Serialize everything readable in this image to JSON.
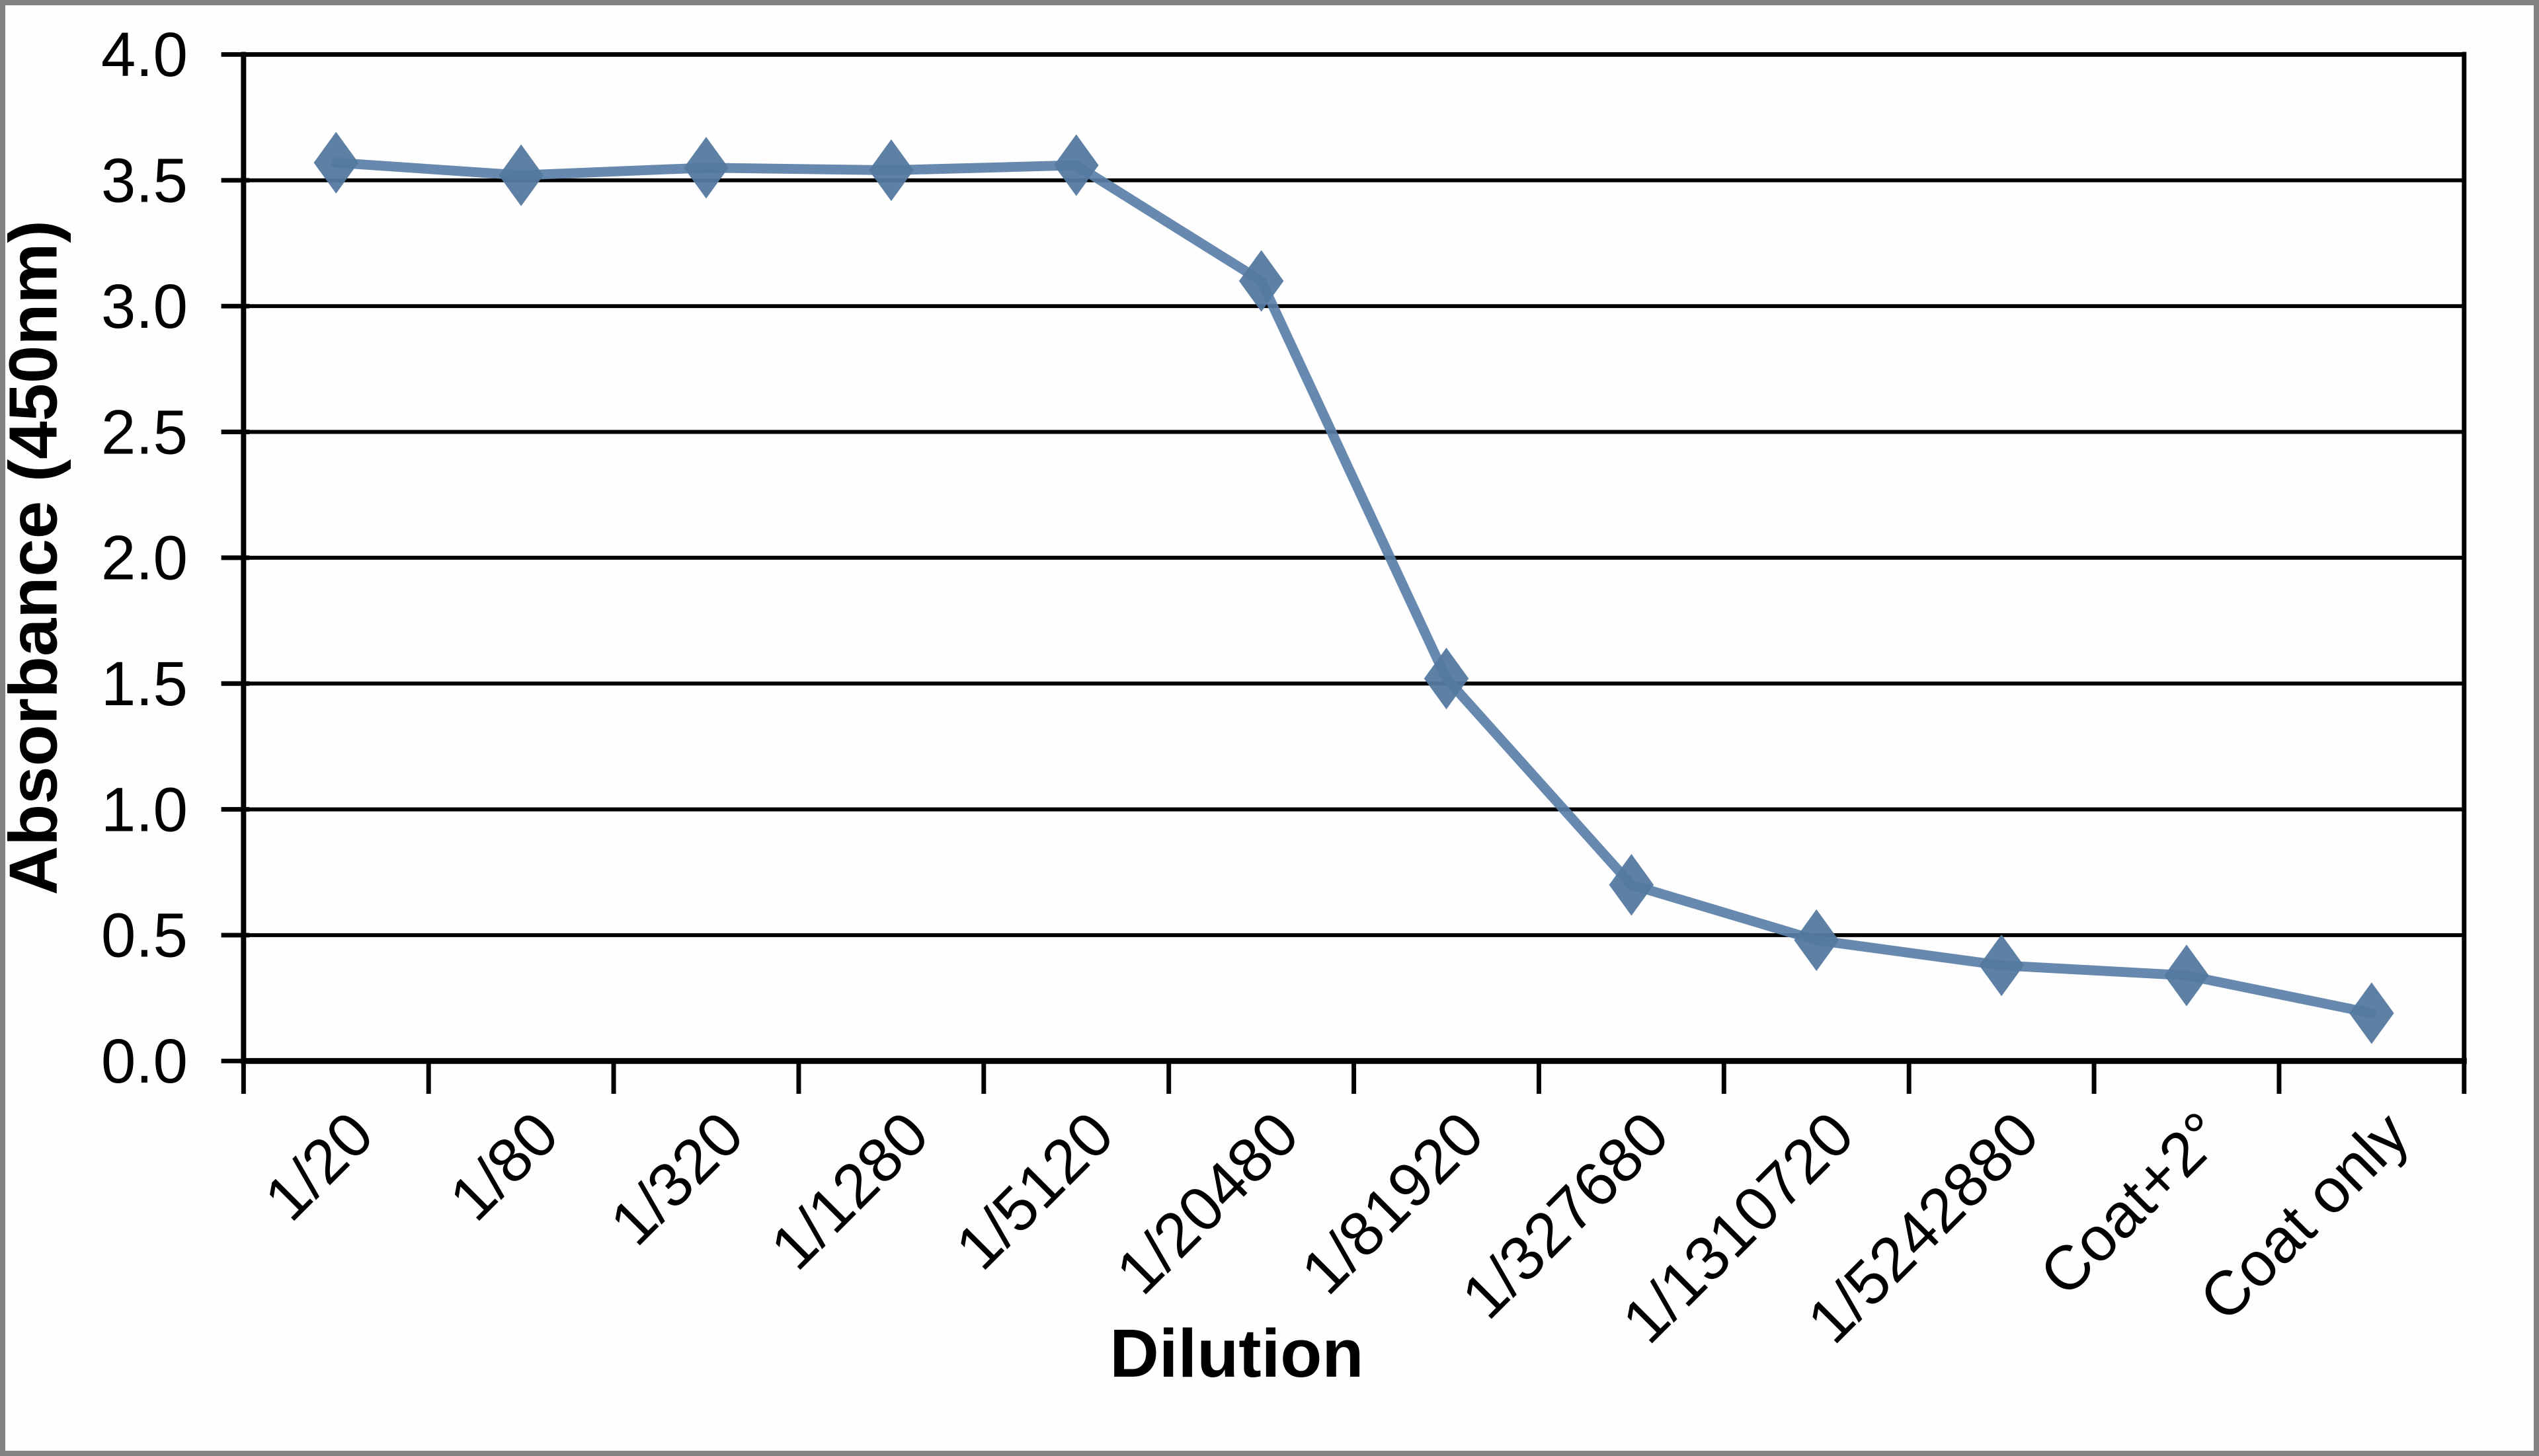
{
  "chart_data": {
    "type": "line",
    "title": "",
    "xlabel": "Dilution",
    "ylabel": "Absorbance (450nm)",
    "categories": [
      "1/20",
      "1/80",
      "1/320",
      "1/1280",
      "1/5120",
      "1/20480",
      "1/81920",
      "1/327680",
      "1/1310720",
      "1/5242880",
      "Coat+2°",
      "Coat only"
    ],
    "series": [
      {
        "name": "Absorbance",
        "values": [
          3.57,
          3.52,
          3.55,
          3.54,
          3.56,
          3.1,
          1.52,
          0.7,
          0.48,
          0.38,
          0.34,
          0.19
        ]
      }
    ],
    "ylim": [
      0.0,
      4.0
    ],
    "ytick_step": 0.5,
    "ytick_labels": [
      "0.0",
      "0.5",
      "1.0",
      "1.5",
      "2.0",
      "2.5",
      "3.0",
      "3.5",
      "4.0"
    ],
    "grid": "horizontal",
    "legend": "none",
    "marker": "diamond",
    "colors": {
      "series_line": "#5b7fa8",
      "marker_fill": "#54799f",
      "gridline": "#000000",
      "axis": "#000000",
      "text": "#000000",
      "background": "#fefefe",
      "frame_border": "#838383"
    }
  }
}
